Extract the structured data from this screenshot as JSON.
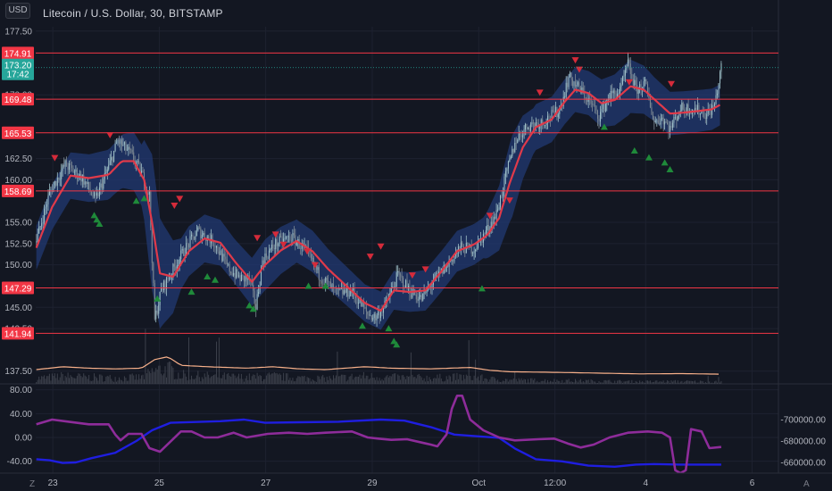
{
  "header": {
    "title": "Litecoin / U.S. Dollar, 30, BITSTAMP",
    "currency": "USD"
  },
  "price_axis": {
    "ticks": [
      "177.50",
      "170.00",
      "162.50",
      "160.00",
      "155.00",
      "152.50",
      "150.00",
      "145.00",
      "142.50",
      "137.50"
    ],
    "tick_values": [
      177.5,
      170.0,
      162.5,
      160.0,
      155.0,
      152.5,
      150.0,
      145.0,
      142.5,
      137.5
    ],
    "current_price": {
      "value": "173.20",
      "countdown": "17:42",
      "color": "#26a69a"
    }
  },
  "levels": [
    {
      "label": "174.91",
      "value": 174.91
    },
    {
      "label": "169.48",
      "value": 169.48
    },
    {
      "label": "165.53",
      "value": 165.53
    },
    {
      "label": "158.69",
      "value": 158.69
    },
    {
      "label": "147.29",
      "value": 147.29
    },
    {
      "label": "141.94",
      "value": 141.94
    }
  ],
  "oscillator": {
    "left_ticks": [
      "80.00",
      "40.00",
      "0.00",
      "-40.00"
    ],
    "left_values": [
      80,
      40,
      0,
      -40
    ],
    "right_ticks": [
      "-660000.00",
      "-680000.00",
      "-700000.00"
    ],
    "right_values": [
      -660000,
      -680000,
      -700000
    ]
  },
  "time_axis": {
    "labels": [
      "23",
      "25",
      "27",
      "29",
      "Oct",
      "12:00",
      "4",
      "6"
    ],
    "label_bars": [
      12.5,
      93.5,
      174.5,
      255.5,
      336.5,
      394.5,
      463.5,
      544.5
    ]
  },
  "corner": {
    "left": "Z",
    "right": "A"
  },
  "colors": {
    "background": "#131722",
    "grid": "#1e2230",
    "level": "#f23645",
    "ema": "#e03a4a",
    "band": "#223a73",
    "candle_up": "#9fc1c9",
    "candle_down": "#7e8a94",
    "volume": "#3b3f4a",
    "volume_ma": "#f7b08a",
    "osc_purple": "#8e2c9a",
    "osc_blue": "#1f1ee0",
    "signal_up": "#1f8a3a",
    "signal_down": "#d52b3a",
    "axis_text": "#b2b5be"
  },
  "chart_data": {
    "type": "line",
    "symbol": "Litecoin / U.S. Dollar",
    "interval": "30",
    "exchange": "BITSTAMP",
    "price_range": [
      136,
      178
    ],
    "bars": 565,
    "price_path": [
      [
        0,
        152.8
      ],
      [
        10,
        158.5
      ],
      [
        22,
        161.8
      ],
      [
        35,
        160.2
      ],
      [
        45,
        157.6
      ],
      [
        55,
        161.5
      ],
      [
        62,
        164.6
      ],
      [
        72,
        163.0
      ],
      [
        80,
        160.8
      ],
      [
        86,
        158.2
      ],
      [
        90,
        143.5
      ],
      [
        95,
        147.0
      ],
      [
        102,
        148.9
      ],
      [
        112,
        151.6
      ],
      [
        123,
        154.0
      ],
      [
        135,
        152.7
      ],
      [
        146,
        149.6
      ],
      [
        155,
        148.4
      ],
      [
        162,
        148.3
      ],
      [
        167,
        145.0
      ],
      [
        172,
        150.5
      ],
      [
        182,
        152.5
      ],
      [
        194,
        153.3
      ],
      [
        205,
        151.7
      ],
      [
        215,
        148.8
      ],
      [
        228,
        146.7
      ],
      [
        240,
        146.9
      ],
      [
        252,
        144.2
      ],
      [
        258,
        143.8
      ],
      [
        266,
        145.4
      ],
      [
        275,
        148.8
      ],
      [
        285,
        146.8
      ],
      [
        293,
        146.0
      ],
      [
        302,
        148.1
      ],
      [
        313,
        150.0
      ],
      [
        322,
        152.0
      ],
      [
        333,
        151.9
      ],
      [
        340,
        153.4
      ],
      [
        350,
        156.0
      ],
      [
        358,
        161.0
      ],
      [
        365,
        164.8
      ],
      [
        374,
        166.4
      ],
      [
        385,
        166.8
      ],
      [
        398,
        168.2
      ],
      [
        405,
        172.1
      ],
      [
        413,
        170.7
      ],
      [
        420,
        169.4
      ],
      [
        428,
        167.5
      ],
      [
        436,
        169.9
      ],
      [
        444,
        170.4
      ],
      [
        450,
        173.6
      ],
      [
        456,
        170.6
      ],
      [
        463,
        171.3
      ],
      [
        470,
        166.8
      ],
      [
        476,
        167.3
      ],
      [
        482,
        166.0
      ],
      [
        490,
        168.4
      ],
      [
        500,
        168.4
      ],
      [
        510,
        167.7
      ],
      [
        516,
        168.8
      ],
      [
        521,
        173.2
      ]
    ],
    "ema_path": [
      [
        0,
        152.0
      ],
      [
        12,
        156.8
      ],
      [
        26,
        160.5
      ],
      [
        40,
        160.2
      ],
      [
        55,
        160.6
      ],
      [
        65,
        162.2
      ],
      [
        74,
        162.2
      ],
      [
        82,
        160.0
      ],
      [
        88,
        155.0
      ],
      [
        94,
        149.0
      ],
      [
        104,
        148.6
      ],
      [
        116,
        151.6
      ],
      [
        128,
        153.1
      ],
      [
        140,
        152.6
      ],
      [
        152,
        150.2
      ],
      [
        164,
        148.0
      ],
      [
        174,
        150.0
      ],
      [
        186,
        151.7
      ],
      [
        198,
        152.8
      ],
      [
        210,
        151.6
      ],
      [
        222,
        149.5
      ],
      [
        236,
        147.5
      ],
      [
        250,
        145.5
      ],
      [
        262,
        144.6
      ],
      [
        272,
        147.0
      ],
      [
        284,
        146.8
      ],
      [
        296,
        147.0
      ],
      [
        308,
        149.2
      ],
      [
        320,
        151.6
      ],
      [
        333,
        152.4
      ],
      [
        343,
        153.5
      ],
      [
        352,
        155.5
      ],
      [
        360,
        159.6
      ],
      [
        370,
        163.8
      ],
      [
        380,
        166.2
      ],
      [
        392,
        167.1
      ],
      [
        402,
        169.2
      ],
      [
        410,
        170.6
      ],
      [
        420,
        170.2
      ],
      [
        430,
        169.0
      ],
      [
        440,
        169.4
      ],
      [
        452,
        171.0
      ],
      [
        462,
        170.6
      ],
      [
        472,
        169.2
      ],
      [
        482,
        167.8
      ],
      [
        492,
        167.9
      ],
      [
        504,
        168.1
      ],
      [
        514,
        168.3
      ],
      [
        521,
        168.9
      ]
    ],
    "band_width": [
      [
        0,
        2.6
      ],
      [
        40,
        2.8
      ],
      [
        60,
        3.0
      ],
      [
        80,
        3.6
      ],
      [
        88,
        8.0
      ],
      [
        96,
        6.0
      ],
      [
        110,
        3.0
      ],
      [
        150,
        2.6
      ],
      [
        175,
        3.0
      ],
      [
        200,
        2.5
      ],
      [
        250,
        2.2
      ],
      [
        300,
        2.4
      ],
      [
        340,
        2.4
      ],
      [
        352,
        3.8
      ],
      [
        362,
        4.8
      ],
      [
        378,
        2.7
      ],
      [
        420,
        2.6
      ],
      [
        450,
        3.2
      ],
      [
        470,
        2.6
      ],
      [
        521,
        2.4
      ]
    ],
    "volume_ma": [
      [
        0,
        5.0
      ],
      [
        20,
        7.0
      ],
      [
        40,
        6.0
      ],
      [
        60,
        5.5
      ],
      [
        80,
        6.0
      ],
      [
        90,
        12.0
      ],
      [
        100,
        14.0
      ],
      [
        110,
        8.0
      ],
      [
        130,
        7.0
      ],
      [
        160,
        6.0
      ],
      [
        180,
        7.0
      ],
      [
        200,
        5.5
      ],
      [
        220,
        5.0
      ],
      [
        250,
        7.0
      ],
      [
        270,
        6.0
      ],
      [
        300,
        5.5
      ],
      [
        330,
        6.5
      ],
      [
        345,
        4.5
      ],
      [
        360,
        3.5
      ],
      [
        400,
        3.0
      ],
      [
        430,
        2.5
      ],
      [
        460,
        2.0
      ],
      [
        490,
        2.2
      ],
      [
        521,
        1.8
      ]
    ],
    "signals_up": [
      [
        44,
        155.8
      ],
      [
        46,
        155.3
      ],
      [
        48,
        154.8
      ],
      [
        76,
        157.5
      ],
      [
        82,
        157.8
      ],
      [
        92,
        146.0
      ],
      [
        118,
        146.8
      ],
      [
        130,
        148.6
      ],
      [
        136,
        148.2
      ],
      [
        162,
        145.2
      ],
      [
        165,
        144.8
      ],
      [
        207,
        147.5
      ],
      [
        220,
        147.5
      ],
      [
        248,
        142.8
      ],
      [
        268,
        142.5
      ],
      [
        272,
        141.0
      ],
      [
        274,
        140.6
      ],
      [
        339,
        147.2
      ],
      [
        432,
        166.2
      ],
      [
        455,
        163.4
      ],
      [
        466,
        162.6
      ],
      [
        478,
        162.0
      ],
      [
        482,
        161.2
      ]
    ],
    "signals_down": [
      [
        14,
        162.6
      ],
      [
        56,
        165.3
      ],
      [
        105,
        157.0
      ],
      [
        109,
        157.8
      ],
      [
        168,
        153.2
      ],
      [
        182,
        153.6
      ],
      [
        188,
        152.4
      ],
      [
        206,
        151.6
      ],
      [
        212,
        150.0
      ],
      [
        254,
        151.0
      ],
      [
        262,
        152.2
      ],
      [
        286,
        148.8
      ],
      [
        296,
        149.5
      ],
      [
        345,
        155.8
      ],
      [
        360,
        157.6
      ],
      [
        383,
        170.3
      ],
      [
        410,
        174.1
      ],
      [
        413,
        173.0
      ],
      [
        451,
        171.5
      ],
      [
        483,
        171.3
      ]
    ],
    "osc_purple": [
      [
        0,
        22
      ],
      [
        12,
        30
      ],
      [
        26,
        26
      ],
      [
        40,
        22
      ],
      [
        55,
        22
      ],
      [
        60,
        5
      ],
      [
        64,
        -5
      ],
      [
        70,
        6
      ],
      [
        80,
        6
      ],
      [
        86,
        -18
      ],
      [
        94,
        -24
      ],
      [
        110,
        10
      ],
      [
        118,
        10
      ],
      [
        128,
        0
      ],
      [
        138,
        0
      ],
      [
        150,
        8
      ],
      [
        160,
        0
      ],
      [
        176,
        6
      ],
      [
        192,
        8
      ],
      [
        206,
        6
      ],
      [
        220,
        8
      ],
      [
        240,
        10
      ],
      [
        252,
        0
      ],
      [
        260,
        -2
      ],
      [
        270,
        -4
      ],
      [
        282,
        -3
      ],
      [
        296,
        -10
      ],
      [
        300,
        -12
      ],
      [
        305,
        -15
      ],
      [
        312,
        5
      ],
      [
        316,
        48
      ],
      [
        320,
        70
      ],
      [
        324,
        70
      ],
      [
        330,
        30
      ],
      [
        340,
        12
      ],
      [
        352,
        0
      ],
      [
        364,
        -5
      ],
      [
        382,
        -3
      ],
      [
        394,
        -2
      ],
      [
        404,
        -10
      ],
      [
        414,
        -17
      ],
      [
        424,
        -12
      ],
      [
        436,
        0
      ],
      [
        450,
        8
      ],
      [
        465,
        10
      ],
      [
        476,
        8
      ],
      [
        482,
        0
      ],
      [
        486,
        -55
      ],
      [
        490,
        -60
      ],
      [
        494,
        -55
      ],
      [
        498,
        14
      ],
      [
        506,
        10
      ],
      [
        512,
        -18
      ],
      [
        521,
        -16
      ]
    ],
    "osc_blue": [
      [
        0,
        -663000
      ],
      [
        10,
        -662000
      ],
      [
        20,
        -659500
      ],
      [
        30,
        -660000
      ],
      [
        42,
        -664000
      ],
      [
        60,
        -669000
      ],
      [
        76,
        -680000
      ],
      [
        88,
        -690000
      ],
      [
        102,
        -697000
      ],
      [
        140,
        -698500
      ],
      [
        158,
        -700000
      ],
      [
        174,
        -697000
      ],
      [
        200,
        -697500
      ],
      [
        230,
        -698000
      ],
      [
        262,
        -700000
      ],
      [
        280,
        -699000
      ],
      [
        300,
        -693000
      ],
      [
        318,
        -686000
      ],
      [
        340,
        -684000
      ],
      [
        352,
        -683000
      ],
      [
        364,
        -673000
      ],
      [
        380,
        -663000
      ],
      [
        400,
        -661000
      ],
      [
        420,
        -657000
      ],
      [
        440,
        -656000
      ],
      [
        456,
        -658000
      ],
      [
        470,
        -658500
      ],
      [
        490,
        -658000
      ],
      [
        521,
        -658000
      ]
    ]
  }
}
